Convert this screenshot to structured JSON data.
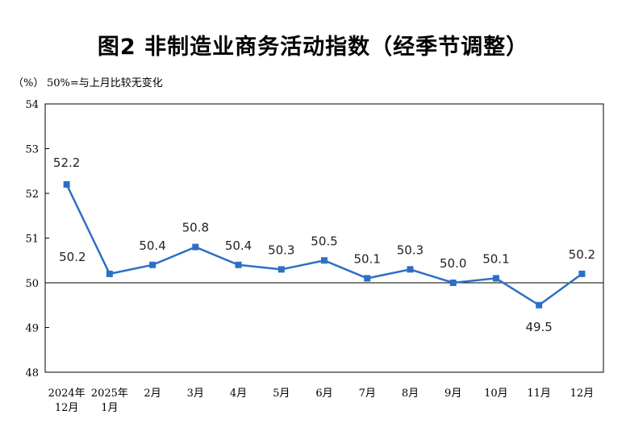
{
  "title": "图2  非制造业商务活动指数（经季节调整）",
  "unit_label": "（%）",
  "reference_note": "50%=与上月比较无变化",
  "chart_data": {
    "type": "line",
    "title": "图2  非制造业商务活动指数（经季节调整）",
    "ylabel": "%",
    "ylim": [
      48,
      54
    ],
    "yticks": [
      48,
      49,
      50,
      51,
      52,
      53,
      54
    ],
    "reference_line": 50,
    "categories": [
      [
        "2024年",
        "12月"
      ],
      [
        "2025年",
        "1月"
      ],
      [
        "2月"
      ],
      [
        "3月"
      ],
      [
        "4月"
      ],
      [
        "5月"
      ],
      [
        "6月"
      ],
      [
        "7月"
      ],
      [
        "8月"
      ],
      [
        "9月"
      ],
      [
        "10月"
      ],
      [
        "11月"
      ],
      [
        "12月"
      ]
    ],
    "series": [
      {
        "name": "非制造业商务活动指数",
        "color": "#2e6fc6",
        "values": [
          52.2,
          50.2,
          50.4,
          50.8,
          50.4,
          50.3,
          50.5,
          50.1,
          50.3,
          50.0,
          50.1,
          49.5,
          50.2
        ],
        "labels": [
          "52.2",
          "50.2",
          "50.4",
          "50.8",
          "50.4",
          "50.3",
          "50.5",
          "50.1",
          "50.3",
          "50.0",
          "50.1",
          "49.5",
          "50.2"
        ]
      }
    ]
  }
}
